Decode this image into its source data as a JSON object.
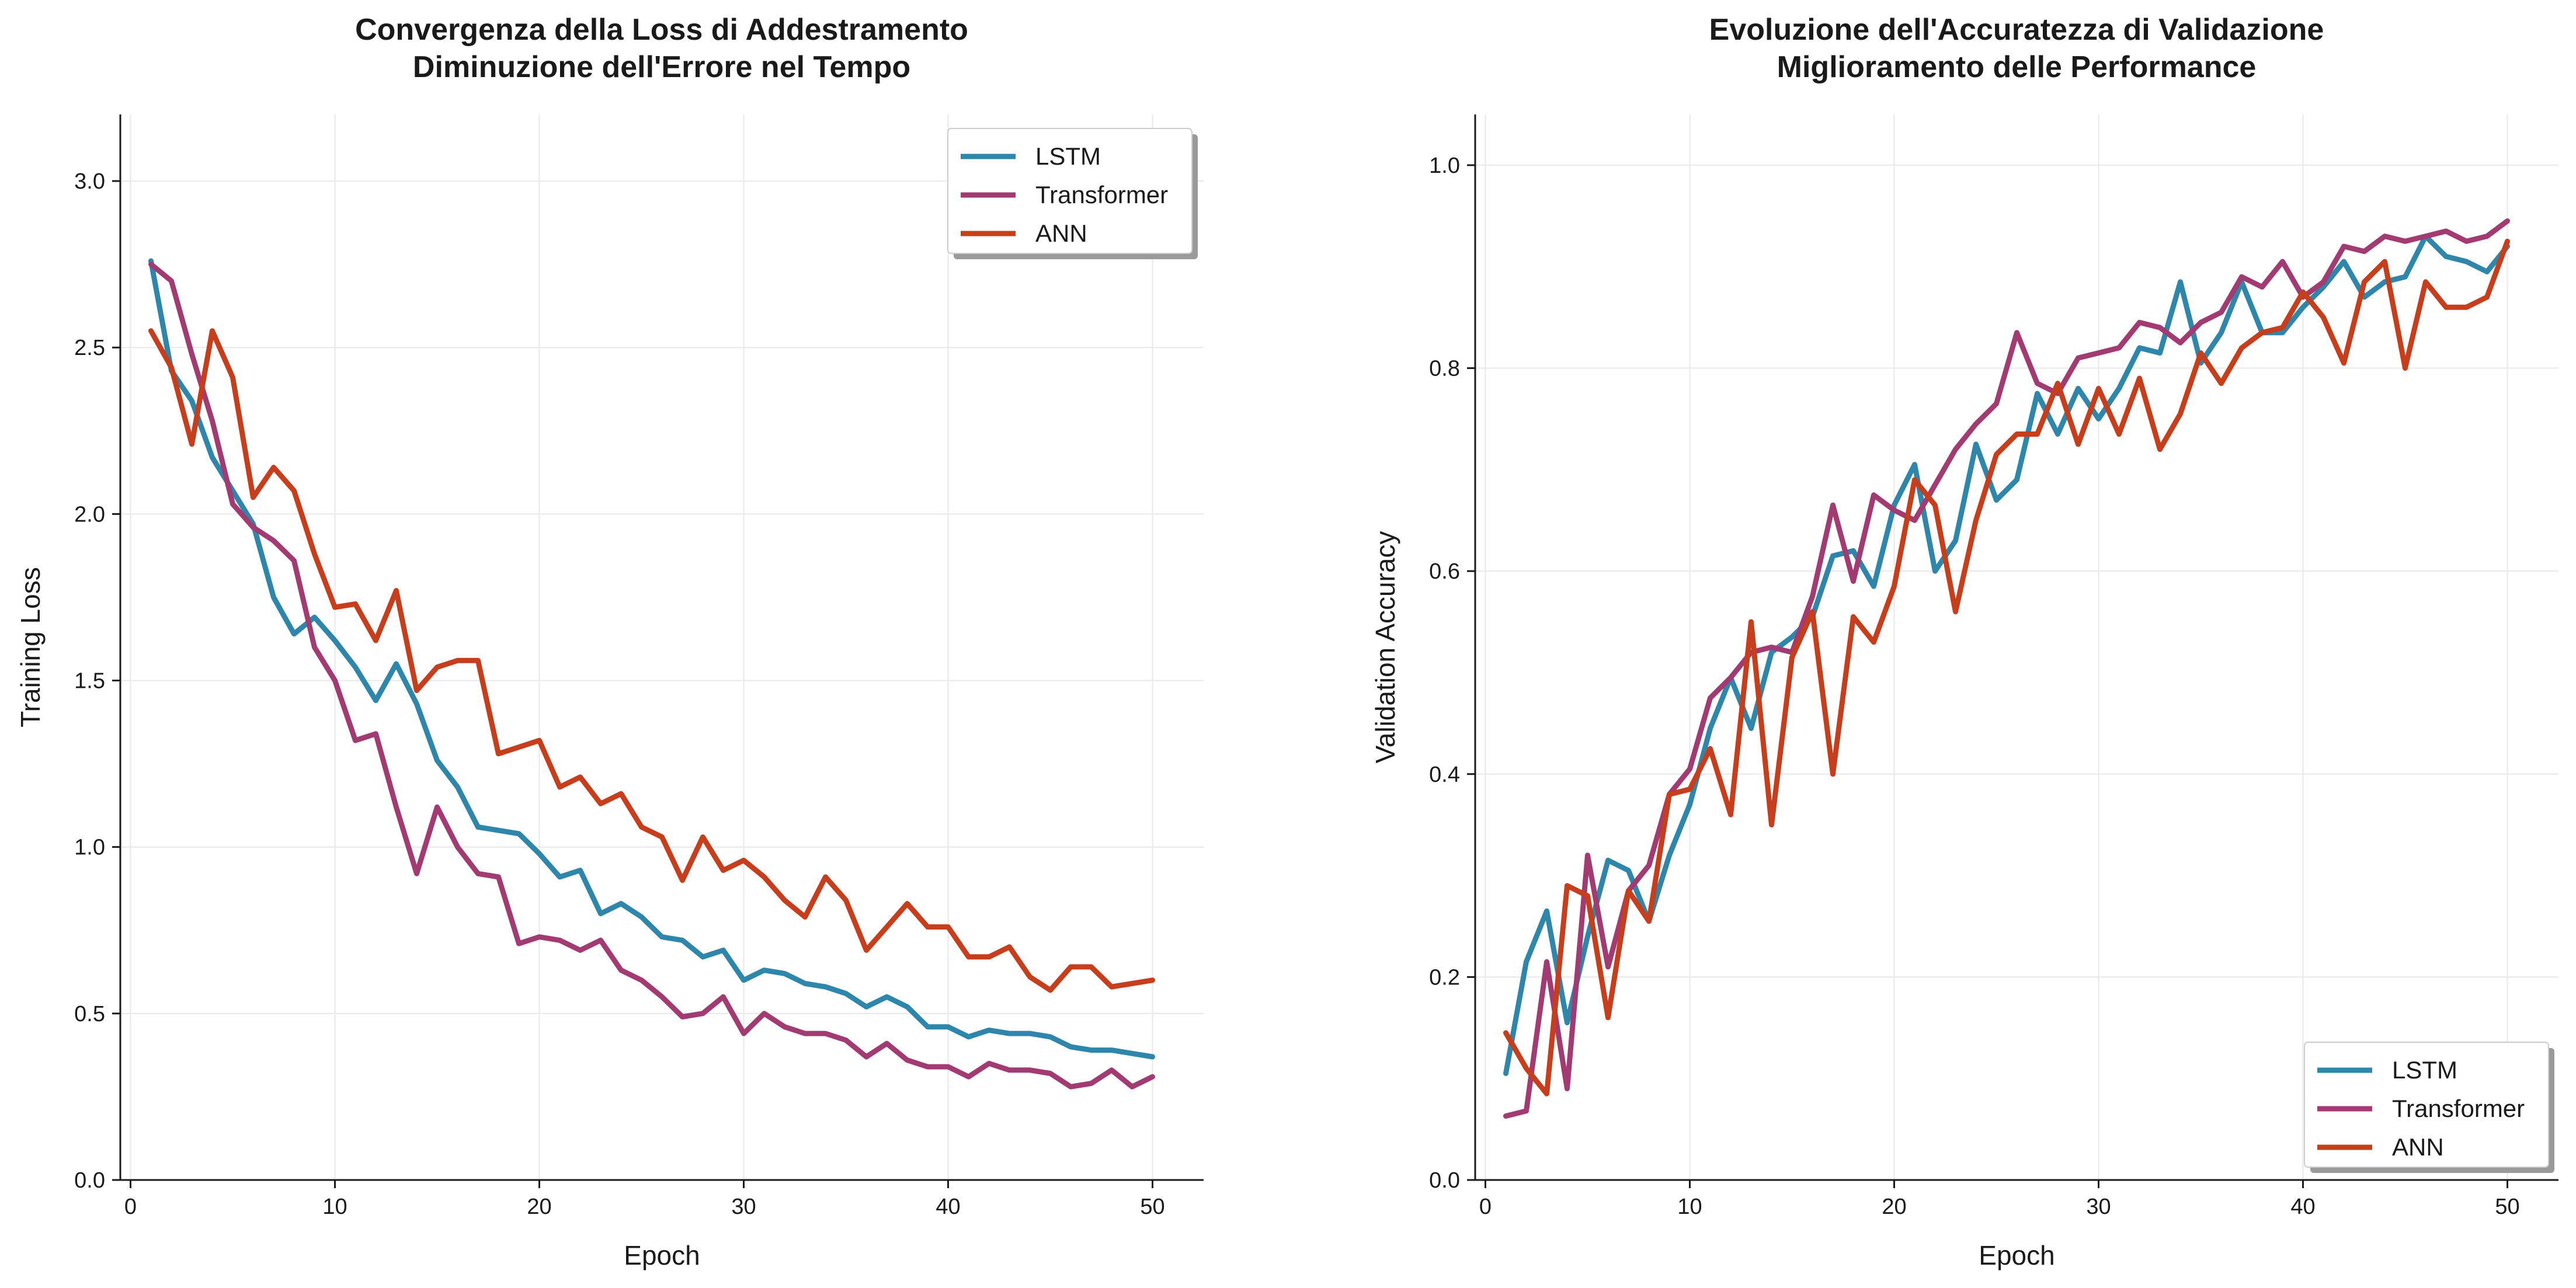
{
  "chart_data": [
    {
      "type": "line",
      "title": "Convergenza della Loss di Addestramento",
      "subtitle": "Diminuzione dell'Errore nel Tempo",
      "xlabel": "Epoch",
      "ylabel": "Training Loss",
      "xlim": [
        -0.5,
        52.5
      ],
      "ylim": [
        0,
        3.2
      ],
      "xticks": [
        0,
        10,
        20,
        30,
        40,
        50
      ],
      "xtick_labels": [
        "0",
        "10",
        "20",
        "30",
        "40",
        "50"
      ],
      "yticks": [
        0,
        0.5,
        1.0,
        1.5,
        2.0,
        2.5,
        3.0
      ],
      "ytick_labels": [
        "0.0",
        "0.5",
        "1.0",
        "1.5",
        "2.0",
        "2.5",
        "3.0"
      ],
      "grid": true,
      "legend_position": "top-right",
      "x": [
        1,
        2,
        3,
        4,
        5,
        6,
        7,
        8,
        9,
        10,
        11,
        12,
        13,
        14,
        15,
        16,
        17,
        18,
        19,
        20,
        21,
        22,
        23,
        24,
        25,
        26,
        27,
        28,
        29,
        30,
        31,
        32,
        33,
        34,
        35,
        36,
        37,
        38,
        39,
        40,
        41,
        42,
        43,
        44,
        45,
        46,
        47,
        48,
        49,
        50
      ],
      "series": [
        {
          "name": "LSTM",
          "color": "#2e86ab",
          "values": [
            2.76,
            2.43,
            2.34,
            2.17,
            2.07,
            1.97,
            1.75,
            1.64,
            1.69,
            1.62,
            1.54,
            1.44,
            1.55,
            1.43,
            1.26,
            1.18,
            1.06,
            1.05,
            1.04,
            0.98,
            0.91,
            0.93,
            0.8,
            0.83,
            0.79,
            0.73,
            0.72,
            0.67,
            0.69,
            0.6,
            0.63,
            0.62,
            0.59,
            0.58,
            0.56,
            0.52,
            0.55,
            0.52,
            0.46,
            0.46,
            0.43,
            0.45,
            0.44,
            0.44,
            0.43,
            0.4,
            0.39,
            0.39,
            0.38,
            0.37
          ]
        },
        {
          "name": "Transformer",
          "color": "#a23b72",
          "values": [
            2.75,
            2.7,
            2.48,
            2.28,
            2.03,
            1.96,
            1.92,
            1.86,
            1.6,
            1.5,
            1.32,
            1.34,
            1.12,
            0.92,
            1.12,
            1.0,
            0.92,
            0.91,
            0.71,
            0.73,
            0.72,
            0.69,
            0.72,
            0.63,
            0.6,
            0.55,
            0.49,
            0.5,
            0.55,
            0.44,
            0.5,
            0.46,
            0.44,
            0.44,
            0.42,
            0.37,
            0.41,
            0.36,
            0.34,
            0.34,
            0.31,
            0.35,
            0.33,
            0.33,
            0.32,
            0.28,
            0.29,
            0.33,
            0.28,
            0.31
          ]
        },
        {
          "name": "ANN",
          "color": "#c73e1d",
          "values": [
            2.55,
            2.44,
            2.21,
            2.55,
            2.41,
            2.05,
            2.14,
            2.07,
            1.88,
            1.72,
            1.73,
            1.62,
            1.77,
            1.47,
            1.54,
            1.56,
            1.56,
            1.28,
            1.3,
            1.32,
            1.18,
            1.21,
            1.13,
            1.16,
            1.06,
            1.03,
            0.9,
            1.03,
            0.93,
            0.96,
            0.91,
            0.84,
            0.79,
            0.91,
            0.84,
            0.69,
            0.76,
            0.83,
            0.76,
            0.76,
            0.67,
            0.67,
            0.7,
            0.61,
            0.57,
            0.64,
            0.64,
            0.58,
            0.59,
            0.6
          ]
        }
      ]
    },
    {
      "type": "line",
      "title": "Evoluzione dell'Accuratezza di Validazione",
      "subtitle": "Miglioramento delle Performance",
      "xlabel": "Epoch",
      "ylabel": "Validation Accuracy",
      "xlim": [
        -0.5,
        52.5
      ],
      "ylim": [
        0,
        1.05
      ],
      "xticks": [
        0,
        10,
        20,
        30,
        40,
        50
      ],
      "xtick_labels": [
        "0",
        "10",
        "20",
        "30",
        "40",
        "50"
      ],
      "yticks": [
        0,
        0.2,
        0.4,
        0.6,
        0.8,
        1.0
      ],
      "ytick_labels": [
        "0.0",
        "0.2",
        "0.4",
        "0.6",
        "0.8",
        "1.0"
      ],
      "grid": true,
      "legend_position": "bottom-right",
      "x": [
        1,
        2,
        3,
        4,
        5,
        6,
        7,
        8,
        9,
        10,
        11,
        12,
        13,
        14,
        15,
        16,
        17,
        18,
        19,
        20,
        21,
        22,
        23,
        24,
        25,
        26,
        27,
        28,
        29,
        30,
        31,
        32,
        33,
        34,
        35,
        36,
        37,
        38,
        39,
        40,
        41,
        42,
        43,
        44,
        45,
        46,
        47,
        48,
        49,
        50
      ],
      "series": [
        {
          "name": "LSTM",
          "color": "#2e86ab",
          "values": [
            0.105,
            0.215,
            0.265,
            0.155,
            0.24,
            0.315,
            0.305,
            0.255,
            0.32,
            0.37,
            0.445,
            0.495,
            0.445,
            0.52,
            0.535,
            0.555,
            0.615,
            0.62,
            0.585,
            0.665,
            0.705,
            0.6,
            0.63,
            0.725,
            0.67,
            0.69,
            0.775,
            0.735,
            0.78,
            0.75,
            0.78,
            0.82,
            0.815,
            0.885,
            0.805,
            0.835,
            0.885,
            0.835,
            0.835,
            0.86,
            0.88,
            0.905,
            0.87,
            0.885,
            0.89,
            0.93,
            0.91,
            0.905,
            0.895,
            0.92
          ]
        },
        {
          "name": "Transformer",
          "color": "#a23b72",
          "values": [
            0.063,
            0.068,
            0.215,
            0.09,
            0.32,
            0.21,
            0.285,
            0.31,
            0.38,
            0.405,
            0.475,
            0.495,
            0.52,
            0.525,
            0.52,
            0.575,
            0.665,
            0.59,
            0.675,
            0.66,
            0.65,
            0.685,
            0.72,
            0.745,
            0.765,
            0.835,
            0.785,
            0.775,
            0.81,
            0.815,
            0.82,
            0.845,
            0.84,
            0.825,
            0.845,
            0.855,
            0.89,
            0.88,
            0.905,
            0.87,
            0.885,
            0.92,
            0.915,
            0.93,
            0.925,
            0.93,
            0.935,
            0.925,
            0.93,
            0.945
          ]
        },
        {
          "name": "ANN",
          "color": "#c73e1d",
          "values": [
            0.145,
            0.11,
            0.085,
            0.29,
            0.28,
            0.16,
            0.285,
            0.255,
            0.38,
            0.385,
            0.425,
            0.36,
            0.55,
            0.35,
            0.515,
            0.56,
            0.4,
            0.555,
            0.53,
            0.585,
            0.69,
            0.665,
            0.56,
            0.65,
            0.715,
            0.735,
            0.735,
            0.785,
            0.725,
            0.78,
            0.735,
            0.79,
            0.72,
            0.755,
            0.815,
            0.785,
            0.82,
            0.835,
            0.84,
            0.875,
            0.85,
            0.805,
            0.885,
            0.905,
            0.8,
            0.885,
            0.86,
            0.86,
            0.87,
            0.925
          ]
        }
      ]
    }
  ]
}
